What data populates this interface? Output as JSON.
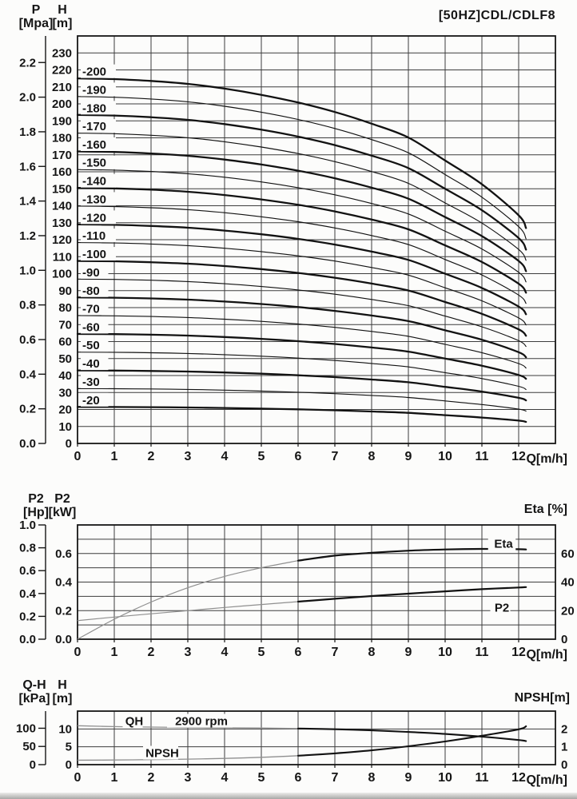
{
  "page": {
    "background": "#fcfcfb",
    "ink": "#151515",
    "grid_color": "#3d3d3d",
    "border_color": "#161616",
    "light_curve_color": "#8f8f8f",
    "halo_color": "#fcfcfb"
  },
  "chart_data": [
    {
      "id": "head-vs-flow",
      "type": "line",
      "title": "[50HZ]CDL/CDLF8",
      "x": {
        "title": "Q[m/h]",
        "ticks": [
          0,
          1,
          2,
          3,
          4,
          5,
          6,
          7,
          8,
          9,
          10,
          11,
          12
        ],
        "min": 0,
        "max": 13,
        "grid_step": 1
      },
      "y_head": {
        "title_lines": [
          "H",
          "[m]"
        ],
        "unit": "m",
        "ticks": [
          0,
          10,
          20,
          30,
          40,
          50,
          60,
          70,
          80,
          90,
          100,
          110,
          120,
          130,
          140,
          150,
          160,
          170,
          180,
          190,
          200,
          210,
          220,
          230
        ],
        "min": 0,
        "max": 240,
        "grid_step": 10
      },
      "y_pressure": {
        "title_lines": [
          "P",
          "[Mpa]"
        ],
        "unit": "Mpa",
        "ticks": [
          "0.0",
          "0.2",
          "0.4",
          "0.6",
          "0.8",
          "1.0",
          "1.2",
          "1.4",
          "1.6",
          "1.8",
          "2.0",
          "2.2"
        ],
        "mpa_per_m": 0.009806
      },
      "q_samples": [
        0,
        1,
        2,
        3,
        4,
        5,
        6,
        7,
        8,
        9,
        10,
        11,
        12,
        12.2
      ],
      "head_ratio": [
        1,
        0.998,
        0.993,
        0.985,
        0.972,
        0.955,
        0.934,
        0.908,
        0.876,
        0.838,
        0.775,
        0.71,
        0.625,
        0.59
      ],
      "curves": [
        {
          "label": "-200",
          "shutoff_head_m": 215.0,
          "bold": true
        },
        {
          "label": "-190",
          "shutoff_head_m": 204.3,
          "bold": false
        },
        {
          "label": "-180",
          "shutoff_head_m": 193.5,
          "bold": true
        },
        {
          "label": "-170",
          "shutoff_head_m": 182.8,
          "bold": false
        },
        {
          "label": "-160",
          "shutoff_head_m": 172.0,
          "bold": true
        },
        {
          "label": "-150",
          "shutoff_head_m": 161.3,
          "bold": false
        },
        {
          "label": "-140",
          "shutoff_head_m": 150.5,
          "bold": true
        },
        {
          "label": "-130",
          "shutoff_head_m": 139.8,
          "bold": false
        },
        {
          "label": "-120",
          "shutoff_head_m": 129.0,
          "bold": true
        },
        {
          "label": "-110",
          "shutoff_head_m": 118.3,
          "bold": false
        },
        {
          "label": "-100",
          "shutoff_head_m": 107.5,
          "bold": true
        },
        {
          "label": "-90",
          "shutoff_head_m": 96.8,
          "bold": false
        },
        {
          "label": "-80",
          "shutoff_head_m": 86.0,
          "bold": true
        },
        {
          "label": "-70",
          "shutoff_head_m": 75.3,
          "bold": false
        },
        {
          "label": "-60",
          "shutoff_head_m": 64.5,
          "bold": true
        },
        {
          "label": "-50",
          "shutoff_head_m": 53.8,
          "bold": false
        },
        {
          "label": "-40",
          "shutoff_head_m": 43.0,
          "bold": true
        },
        {
          "label": "-30",
          "shutoff_head_m": 32.3,
          "bold": false
        },
        {
          "label": "-20",
          "shutoff_head_m": 21.5,
          "bold": true
        }
      ]
    },
    {
      "id": "power-and-efficiency",
      "type": "line",
      "x": {
        "title": "Q[m/h]",
        "ticks": [
          0,
          1,
          2,
          3,
          4,
          5,
          6,
          7,
          8,
          9,
          10,
          11,
          12
        ],
        "min": 0,
        "max": 13,
        "grid_step": 1
      },
      "y_power_hp": {
        "title_lines": [
          "P2",
          "[Hp]"
        ],
        "unit": "Hp",
        "ticks": [
          "0.0",
          "0.2",
          "0.4",
          "0.6",
          "0.8",
          "1.0"
        ],
        "min": 0,
        "max": 1.0
      },
      "y_power_kw": {
        "title_lines": [
          "P2",
          "[kW]"
        ],
        "unit": "kW",
        "ticks": [
          "0.0",
          "0.2",
          "0.4",
          "0.6"
        ],
        "min": 0,
        "max": 0.8
      },
      "y_eta": {
        "title": "Eta [%]",
        "unit": "%",
        "ticks": [
          0,
          20,
          40,
          60
        ],
        "min": 0,
        "max": 80,
        "grid_step": 10
      },
      "q_samples": [
        0,
        1,
        2,
        3,
        4,
        5,
        6,
        7,
        8,
        9,
        10,
        11,
        12,
        12.2
      ],
      "series": [
        {
          "name": "P2",
          "label": "P2",
          "unit": "kW",
          "values": [
            0.13,
            0.155,
            0.178,
            0.2,
            0.222,
            0.243,
            0.263,
            0.283,
            0.302,
            0.319,
            0.335,
            0.35,
            0.362,
            0.365
          ]
        },
        {
          "name": "Eta",
          "label": "Eta",
          "unit": "%",
          "values": [
            0,
            14,
            26,
            36,
            44,
            50,
            55,
            58.5,
            60.5,
            62,
            62.8,
            63.2,
            63.0,
            62.8
          ]
        }
      ]
    },
    {
      "id": "single-stage-qh-npsh",
      "type": "line",
      "x": {
        "title": "Q[m/h]",
        "ticks": [
          0,
          1,
          2,
          3,
          4,
          5,
          6,
          7,
          8,
          9,
          10,
          11,
          12
        ],
        "min": 0,
        "max": 13,
        "grid_step": 1
      },
      "y_head": {
        "title_lines": [
          "H",
          "[m]"
        ],
        "unit": "m",
        "ticks": [
          0,
          5,
          10
        ],
        "min": 0,
        "max": 15
      },
      "y_pressure_kpa": {
        "title_lines": [
          "Q-H",
          "[kPa]"
        ],
        "unit": "kPa",
        "ticks": [
          0,
          50,
          100
        ],
        "kpa_per_m": 9.806
      },
      "y_npsh": {
        "title": "NPSH[m]",
        "unit": "m",
        "ticks": [
          0,
          1,
          2
        ],
        "min": 0,
        "max": 3,
        "grid_step": 1
      },
      "annotations": {
        "qh_label": "QH",
        "rpm_label": "2900 rpm",
        "npsh_label": "NPSH"
      },
      "q_samples": [
        0,
        1,
        2,
        3,
        4,
        5,
        6,
        7,
        8,
        9,
        10,
        11,
        12,
        12.2
      ],
      "series": [
        {
          "name": "QH",
          "unit": "m",
          "values": [
            10.9,
            10.65,
            10.52,
            10.42,
            10.33,
            10.25,
            10.12,
            9.92,
            9.6,
            9.15,
            8.6,
            7.85,
            6.9,
            6.6
          ]
        },
        {
          "name": "NPSH",
          "unit": "m",
          "values": [
            0.25,
            0.26,
            0.28,
            0.31,
            0.35,
            0.41,
            0.5,
            0.63,
            0.8,
            1.03,
            1.3,
            1.62,
            1.98,
            2.15
          ]
        }
      ]
    }
  ]
}
